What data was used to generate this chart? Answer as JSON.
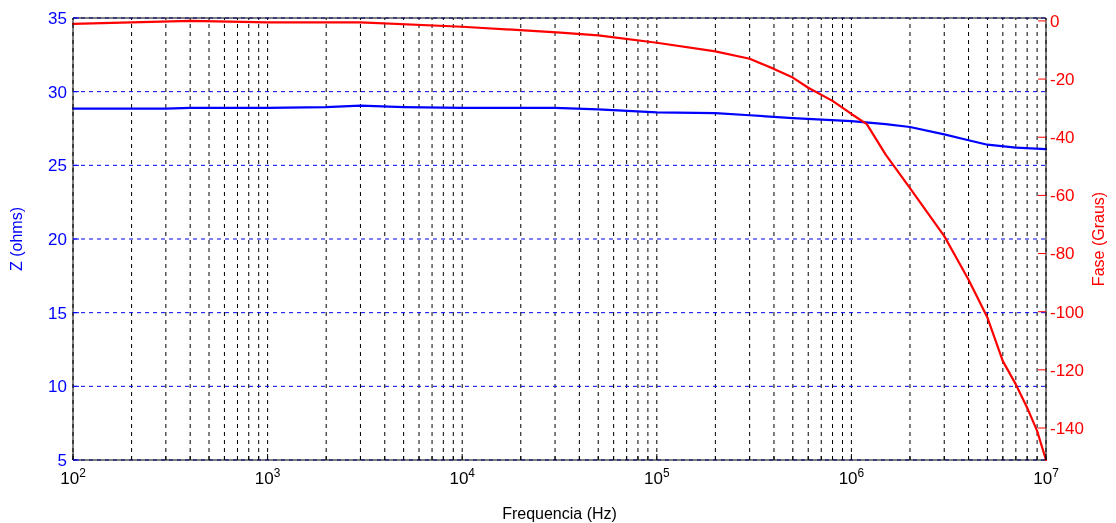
{
  "chart_data": {
    "type": "line",
    "xlabel": "Frequencia (Hz)",
    "ylabel": "Z (ohms)",
    "y2label": "Fase (Graus)",
    "log": "x",
    "grid": true,
    "line_style": "solid",
    "xlim": [
      100,
      10000000
    ],
    "xticks": [
      {
        "value": 100,
        "label": "10$^{2}$"
      },
      {
        "value": 200,
        "label": null
      },
      {
        "value": 300,
        "label": null
      },
      {
        "value": 400,
        "label": null
      },
      {
        "value": 500,
        "label": null
      },
      {
        "value": 600,
        "label": null
      },
      {
        "value": 700,
        "label": null
      },
      {
        "value": 800,
        "label": null
      },
      {
        "value": 900,
        "label": null
      },
      {
        "value": 1000,
        "label": "10$^{3}$"
      },
      {
        "value": 2000,
        "label": null
      },
      {
        "value": 3000,
        "label": null
      },
      {
        "value": 4000,
        "label": null
      },
      {
        "value": 5000,
        "label": null
      },
      {
        "value": 6000,
        "label": null
      },
      {
        "value": 7000,
        "label": null
      },
      {
        "value": 8000,
        "label": null
      },
      {
        "value": 9000,
        "label": null
      },
      {
        "value": 10000,
        "label": "10$^{4}$"
      },
      {
        "value": 20000,
        "label": null
      },
      {
        "value": 30000,
        "label": null
      },
      {
        "value": 40000,
        "label": null
      },
      {
        "value": 50000,
        "label": null
      },
      {
        "value": 60000,
        "label": null
      },
      {
        "value": 70000,
        "label": null
      },
      {
        "value": 80000,
        "label": null
      },
      {
        "value": 90000,
        "label": null
      },
      {
        "value": 100000,
        "label": "10$^{5}$"
      },
      {
        "value": 200000,
        "label": null
      },
      {
        "value": 300000,
        "label": null
      },
      {
        "value": 400000,
        "label": null
      },
      {
        "value": 500000,
        "label": null
      },
      {
        "value": 600000,
        "label": null
      },
      {
        "value": 700000,
        "label": null
      },
      {
        "value": 800000,
        "label": null
      },
      {
        "value": 900000,
        "label": null
      },
      {
        "value": 1000000,
        "label": "10$^{6}$"
      },
      {
        "value": 2000000,
        "label": null
      },
      {
        "value": 3000000,
        "label": null
      },
      {
        "value": 4000000,
        "label": null
      },
      {
        "value": 5000000,
        "label": null
      },
      {
        "value": 6000000,
        "label": null
      },
      {
        "value": 7000000,
        "label": null
      },
      {
        "value": 8000000,
        "label": null
      },
      {
        "value": 9000000,
        "label": null
      },
      {
        "value": 10000000,
        "label": "10$^{7}$"
      }
    ],
    "ylim": [
      5,
      35
    ],
    "yticks": [
      5,
      10,
      15,
      20,
      25,
      30,
      35
    ],
    "y2lim": [
      -151,
      1
    ],
    "y2ticks": [
      -140,
      -120,
      -100,
      -80,
      -60,
      -40,
      -20,
      0
    ],
    "series": [
      {
        "color": "#0000ff",
        "x": [
          100,
          300,
          400,
          1000,
          2000,
          3000,
          5000,
          10000,
          30000,
          50000,
          100000,
          200000,
          300000,
          500000,
          1000000,
          1500000,
          2000000,
          3000000,
          4000000,
          5000000,
          7000000,
          10000000
        ],
        "values": [
          28.85,
          28.85,
          28.9,
          28.9,
          28.95,
          29.05,
          28.95,
          28.9,
          28.9,
          28.8,
          28.6,
          28.55,
          28.4,
          28.2,
          28.0,
          27.8,
          27.6,
          27.1,
          26.7,
          26.4,
          26.2,
          26.1
        ]
      },
      {
        "color": "#ff0000",
        "axis": "y2",
        "x": [
          100,
          200,
          400,
          1000,
          3000,
          10000,
          32000,
          50000,
          100000,
          200000,
          300000,
          400000,
          500000,
          600000,
          800000,
          1000000,
          1200000,
          1500000,
          2000000,
          3000000,
          4000000,
          5000000,
          6000000,
          7000000,
          8000000,
          9000000,
          10000000
        ],
        "values": [
          -1,
          -0.5,
          0,
          -0.5,
          -0.5,
          -2,
          -4,
          -5,
          -7.5,
          -10.5,
          -13,
          -16.5,
          -19.5,
          -23,
          -27.5,
          -32,
          -35.5,
          -46,
          -57.5,
          -74,
          -89,
          -102,
          -117,
          -125,
          -133,
          -141,
          -151
        ]
      }
    ]
  }
}
